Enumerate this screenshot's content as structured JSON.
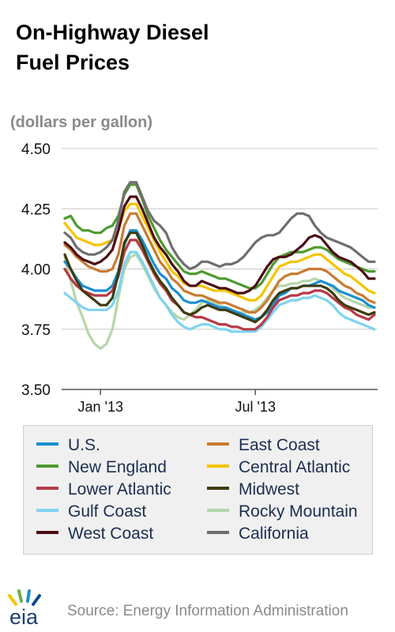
{
  "title_line1": "On-Highway Diesel",
  "title_line2": "Fuel Prices",
  "unit": "(dollars per gallon)",
  "source": "Source: Energy Information Administration",
  "logo_text": "eia",
  "chart_data": {
    "type": "line",
    "title": "On-Highway Diesel Fuel Prices",
    "ylabel": "(dollars per gallon)",
    "ylim": [
      3.5,
      4.5
    ],
    "yticks": [
      "3.50",
      "3.75",
      "4.00",
      "4.25",
      "4.50"
    ],
    "xticks": [
      {
        "label": "Jan '13",
        "index": 6
      },
      {
        "label": "Jul '13",
        "index": 32
      }
    ],
    "legend_position": "bottom",
    "grid": "horizontal",
    "weeks": 53,
    "series": [
      {
        "name": "U.S.",
        "color": "#1a8fd1",
        "values": [
          4.03,
          4.0,
          3.96,
          3.93,
          3.92,
          3.91,
          3.91,
          3.91,
          3.93,
          3.99,
          4.1,
          4.16,
          4.16,
          4.12,
          4.07,
          4.02,
          3.98,
          3.96,
          3.92,
          3.9,
          3.87,
          3.86,
          3.86,
          3.87,
          3.86,
          3.85,
          3.84,
          3.84,
          3.83,
          3.82,
          3.81,
          3.8,
          3.79,
          3.8,
          3.82,
          3.85,
          3.89,
          3.9,
          3.92,
          3.92,
          3.93,
          3.93,
          3.94,
          3.95,
          3.94,
          3.93,
          3.91,
          3.9,
          3.89,
          3.88,
          3.87,
          3.85,
          3.84
        ]
      },
      {
        "name": "East Coast",
        "color": "#c97a33",
        "values": [
          4.1,
          4.08,
          4.05,
          4.03,
          4.01,
          4.0,
          3.99,
          3.99,
          4.0,
          4.06,
          4.18,
          4.23,
          4.23,
          4.18,
          4.13,
          4.08,
          4.03,
          4.0,
          3.96,
          3.94,
          3.91,
          3.9,
          3.89,
          3.89,
          3.88,
          3.87,
          3.86,
          3.86,
          3.85,
          3.84,
          3.83,
          3.82,
          3.82,
          3.84,
          3.87,
          3.91,
          3.95,
          3.97,
          3.98,
          3.98,
          3.99,
          4.0,
          4.0,
          4.0,
          3.99,
          3.97,
          3.95,
          3.93,
          3.92,
          3.9,
          3.89,
          3.87,
          3.86
        ]
      },
      {
        "name": "New England",
        "color": "#4e9a2e",
        "values": [
          4.21,
          4.22,
          4.18,
          4.16,
          4.16,
          4.15,
          4.15,
          4.17,
          4.18,
          4.22,
          4.31,
          4.35,
          4.35,
          4.29,
          4.22,
          4.17,
          4.12,
          4.08,
          4.05,
          4.02,
          3.99,
          3.98,
          3.98,
          3.99,
          3.98,
          3.97,
          3.96,
          3.96,
          3.95,
          3.94,
          3.93,
          3.92,
          3.92,
          3.94,
          3.98,
          4.02,
          4.05,
          4.06,
          4.07,
          4.07,
          4.07,
          4.08,
          4.09,
          4.09,
          4.08,
          4.06,
          4.04,
          4.03,
          4.02,
          4.01,
          4.0,
          3.99,
          3.99
        ]
      },
      {
        "name": "Central Atlantic",
        "color": "#f5c400",
        "values": [
          4.19,
          4.16,
          4.13,
          4.12,
          4.11,
          4.1,
          4.1,
          4.11,
          4.12,
          4.16,
          4.24,
          4.27,
          4.27,
          4.22,
          4.17,
          4.12,
          4.07,
          4.03,
          3.99,
          3.97,
          3.94,
          3.93,
          3.93,
          3.93,
          3.92,
          3.91,
          3.91,
          3.91,
          3.9,
          3.89,
          3.88,
          3.87,
          3.87,
          3.89,
          3.93,
          3.97,
          4.01,
          4.02,
          4.03,
          4.03,
          4.04,
          4.05,
          4.06,
          4.06,
          4.04,
          4.02,
          4.0,
          3.98,
          3.97,
          3.95,
          3.93,
          3.91,
          3.9
        ]
      },
      {
        "name": "Lower Atlantic",
        "color": "#b53a46",
        "values": [
          4.0,
          3.96,
          3.93,
          3.91,
          3.9,
          3.89,
          3.89,
          3.89,
          3.91,
          3.97,
          4.07,
          4.12,
          4.12,
          4.08,
          4.03,
          3.98,
          3.94,
          3.91,
          3.87,
          3.85,
          3.82,
          3.81,
          3.8,
          3.8,
          3.79,
          3.78,
          3.77,
          3.77,
          3.76,
          3.76,
          3.75,
          3.75,
          3.75,
          3.77,
          3.8,
          3.84,
          3.87,
          3.88,
          3.89,
          3.89,
          3.9,
          3.9,
          3.91,
          3.91,
          3.9,
          3.88,
          3.86,
          3.84,
          3.83,
          3.81,
          3.8,
          3.79,
          3.81
        ]
      },
      {
        "name": "Midwest",
        "color": "#3d3a0e",
        "values": [
          4.06,
          4.0,
          3.95,
          3.91,
          3.89,
          3.87,
          3.85,
          3.85,
          3.88,
          3.98,
          4.11,
          4.15,
          4.15,
          4.1,
          4.04,
          3.99,
          3.95,
          3.92,
          3.88,
          3.85,
          3.82,
          3.81,
          3.82,
          3.84,
          3.85,
          3.84,
          3.83,
          3.83,
          3.82,
          3.81,
          3.8,
          3.79,
          3.78,
          3.8,
          3.83,
          3.87,
          3.9,
          3.91,
          3.92,
          3.92,
          3.93,
          3.93,
          3.93,
          3.93,
          3.92,
          3.9,
          3.87,
          3.85,
          3.84,
          3.83,
          3.82,
          3.81,
          3.82
        ]
      },
      {
        "name": "Gulf Coast",
        "color": "#7fd3f0",
        "values": [
          3.9,
          3.88,
          3.86,
          3.84,
          3.83,
          3.83,
          3.83,
          3.83,
          3.85,
          3.91,
          4.02,
          4.07,
          4.07,
          4.03,
          3.98,
          3.93,
          3.88,
          3.85,
          3.81,
          3.78,
          3.76,
          3.75,
          3.76,
          3.77,
          3.77,
          3.76,
          3.75,
          3.75,
          3.74,
          3.74,
          3.74,
          3.74,
          3.74,
          3.76,
          3.79,
          3.82,
          3.85,
          3.86,
          3.87,
          3.87,
          3.88,
          3.88,
          3.89,
          3.88,
          3.87,
          3.85,
          3.82,
          3.8,
          3.79,
          3.78,
          3.77,
          3.76,
          3.75
        ]
      },
      {
        "name": "Rocky Mountain",
        "color": "#b5d6a8",
        "values": [
          4.05,
          3.95,
          3.86,
          3.8,
          3.73,
          3.69,
          3.67,
          3.69,
          3.75,
          3.88,
          4.0,
          4.05,
          4.06,
          4.02,
          3.97,
          3.92,
          3.88,
          3.85,
          3.82,
          3.8,
          3.79,
          3.81,
          3.83,
          3.86,
          3.87,
          3.86,
          3.85,
          3.84,
          3.83,
          3.82,
          3.82,
          3.82,
          3.83,
          3.85,
          3.88,
          3.91,
          3.93,
          3.93,
          3.94,
          3.94,
          3.95,
          3.95,
          3.96,
          3.95,
          3.94,
          3.92,
          3.9,
          3.88,
          3.87,
          3.86,
          3.85,
          3.84,
          3.84
        ]
      },
      {
        "name": "West Coast",
        "color": "#4a0d14",
        "values": [
          4.11,
          4.09,
          4.06,
          4.04,
          4.03,
          4.02,
          4.03,
          4.05,
          4.08,
          4.16,
          4.26,
          4.3,
          4.3,
          4.25,
          4.19,
          4.13,
          4.09,
          4.06,
          4.02,
          3.99,
          3.95,
          3.93,
          3.93,
          3.95,
          3.94,
          3.93,
          3.92,
          3.92,
          3.91,
          3.9,
          3.9,
          3.91,
          3.93,
          3.97,
          4.01,
          4.04,
          4.05,
          4.05,
          4.06,
          4.08,
          4.1,
          4.13,
          4.14,
          4.13,
          4.1,
          4.07,
          4.05,
          4.04,
          4.03,
          4.01,
          3.99,
          3.96,
          3.96
        ]
      },
      {
        "name": "California",
        "color": "#6e6e6e",
        "values": [
          4.15,
          4.13,
          4.09,
          4.07,
          4.06,
          4.06,
          4.07,
          4.09,
          4.12,
          4.2,
          4.32,
          4.36,
          4.36,
          4.3,
          4.24,
          4.2,
          4.18,
          4.15,
          4.09,
          4.05,
          4.02,
          4.0,
          4.01,
          4.03,
          4.03,
          4.02,
          4.01,
          4.02,
          4.02,
          4.03,
          4.05,
          4.08,
          4.11,
          4.13,
          4.14,
          4.14,
          4.15,
          4.18,
          4.21,
          4.23,
          4.23,
          4.22,
          4.18,
          4.15,
          4.13,
          4.12,
          4.11,
          4.1,
          4.09,
          4.07,
          4.05,
          4.03,
          4.03
        ]
      }
    ]
  },
  "legend": [
    [
      {
        "label": "U.S.",
        "color": "#1a8fd1"
      },
      {
        "label": "East Coast",
        "color": "#c97a33"
      }
    ],
    [
      {
        "label": "New England",
        "color": "#4e9a2e"
      },
      {
        "label": "Central Atlantic",
        "color": "#f5c400"
      }
    ],
    [
      {
        "label": "Lower Atlantic",
        "color": "#b53a46"
      },
      {
        "label": "Midwest",
        "color": "#3d3a0e"
      }
    ],
    [
      {
        "label": "Gulf Coast",
        "color": "#7fd3f0"
      },
      {
        "label": "Rocky Mountain",
        "color": "#b5d6a8"
      }
    ],
    [
      {
        "label": "West Coast",
        "color": "#4a0d14"
      },
      {
        "label": "California",
        "color": "#6e6e6e"
      }
    ]
  ]
}
